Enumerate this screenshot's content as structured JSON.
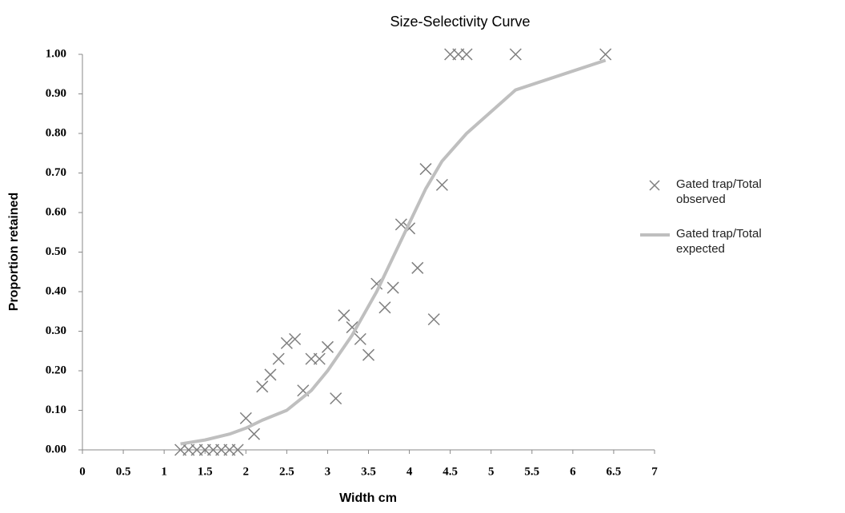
{
  "chart_data": {
    "type": "scatter",
    "title": "Size-Selectivity Curve",
    "x_label": "Width cm",
    "y_label": "Proportion retained",
    "xlim": [
      0,
      7
    ],
    "xticks": [
      0,
      0.5,
      1,
      1.5,
      2,
      2.5,
      3,
      3.5,
      4,
      4.5,
      5,
      5.5,
      6,
      6.5,
      7
    ],
    "ylim": [
      0,
      1
    ],
    "yticks": [
      {
        "value": 0,
        "label": "0.00"
      },
      {
        "value": 0.1,
        "label": "0.10"
      },
      {
        "value": 0.2,
        "label": "0.20"
      },
      {
        "value": 0.3,
        "label": "0.30"
      },
      {
        "value": 0.4,
        "label": "0.40"
      },
      {
        "value": 0.5,
        "label": "0.50"
      },
      {
        "value": 0.6,
        "label": "0.60"
      },
      {
        "value": 0.7,
        "label": "0.70"
      },
      {
        "value": 0.8,
        "label": "0.80"
      },
      {
        "value": 0.9,
        "label": "0.90"
      },
      {
        "value": 1,
        "label": "1.00"
      }
    ],
    "grid": false,
    "legend": "right",
    "series": [
      {
        "name": "Gated trap/Total observed",
        "type": "scatter",
        "color": "#7f7f7f",
        "x": [
          1.2,
          1.3,
          1.4,
          1.5,
          1.6,
          1.7,
          1.8,
          1.9,
          2.0,
          2.1,
          2.2,
          2.3,
          2.4,
          2.5,
          2.6,
          2.7,
          2.8,
          2.9,
          3.0,
          3.1,
          3.2,
          3.3,
          3.4,
          3.5,
          3.6,
          3.7,
          3.8,
          3.9,
          4.0,
          4.1,
          4.2,
          4.3,
          4.4,
          4.5,
          4.6,
          4.7,
          5.3,
          6.4
        ],
        "values": [
          0,
          0,
          0,
          0,
          0,
          0,
          0,
          0,
          0.08,
          0.04,
          0.16,
          0.19,
          0.23,
          0.27,
          0.28,
          0.15,
          0.23,
          0.23,
          0.26,
          0.13,
          0.34,
          0.31,
          0.28,
          0.24,
          0.42,
          0.36,
          0.41,
          0.57,
          0.56,
          0.46,
          0.71,
          0.33,
          0.67,
          1,
          1,
          1,
          1,
          1
        ]
      },
      {
        "name": "Gated trap/Total expected",
        "type": "line",
        "color": "#bfbfbf",
        "x": [
          1.2,
          1.5,
          1.8,
          2.0,
          2.2,
          2.5,
          2.8,
          3.0,
          3.3,
          3.6,
          3.9,
          4.2,
          4.4,
          4.7,
          5.3,
          6.4
        ],
        "values": [
          0.015,
          0.025,
          0.04,
          0.055,
          0.075,
          0.1,
          0.15,
          0.2,
          0.29,
          0.4,
          0.53,
          0.66,
          0.73,
          0.8,
          0.91,
          0.985
        ]
      }
    ]
  }
}
